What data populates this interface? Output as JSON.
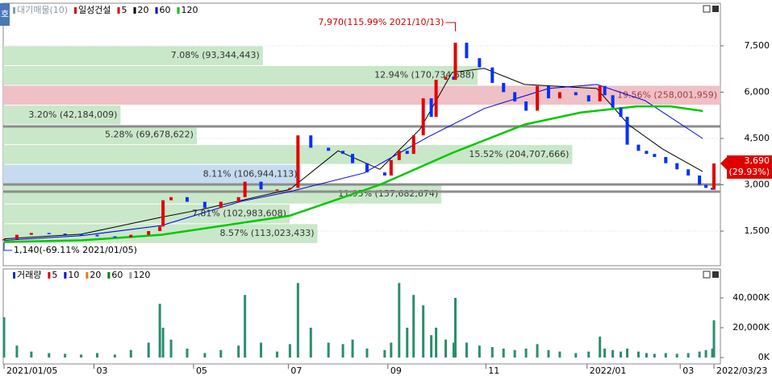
{
  "side_button": "호",
  "chart_data": [
    {
      "type": "candlestick",
      "legend": [
        {
          "label": "대기매물(10)",
          "color": "#7f9fb0"
        },
        {
          "label": "일성건설",
          "color": "#d00000"
        },
        {
          "label": "5",
          "color": "#e00000"
        },
        {
          "label": "20",
          "color": "#000000"
        },
        {
          "label": "60",
          "color": "#0000e0"
        },
        {
          "label": "120",
          "color": "#00c000"
        }
      ],
      "x": [
        "2021/01/05",
        "2021/01/13",
        "2021/01/22",
        "2021/02/02",
        "2021/02/12",
        "2021/02/22",
        "2021/03/04",
        "2021/03/15",
        "2021/03/25",
        "2021/04/05",
        "2021/04/12",
        "2021/04/14",
        "2021/04/19",
        "2021/04/29",
        "2021/05/10",
        "2021/05/20",
        "2021/05/31",
        "2021/06/04",
        "2021/06/14",
        "2021/06/24",
        "2021/07/02",
        "2021/07/07",
        "2021/07/15",
        "2021/07/26",
        "2021/08/04",
        "2021/08/10",
        "2021/08/19",
        "2021/08/30",
        "2021/09/03",
        "2021/09/08",
        "2021/09/13",
        "2021/09/17",
        "2021/09/23",
        "2021/09/28",
        "2021/10/01",
        "2021/10/07",
        "2021/10/12",
        "2021/10/13",
        "2021/10/20",
        "2021/10/28",
        "2021/11/05",
        "2021/11/12",
        "2021/11/19",
        "2021/11/26",
        "2021/12/03",
        "2021/12/10",
        "2021/12/17",
        "2021/12/27",
        "2022/01/04",
        "2022/01/11",
        "2022/01/14",
        "2022/01/19",
        "2022/01/24",
        "2022/01/28",
        "2022/02/04",
        "2022/02/09",
        "2022/02/14",
        "2022/02/21",
        "2022/02/28",
        "2022/03/07",
        "2022/03/14",
        "2022/03/18",
        "2022/03/22",
        "2022/03/23"
      ],
      "close": [
        1240,
        1380,
        1440,
        1420,
        1400,
        1380,
        1330,
        1300,
        1380,
        1500,
        1650,
        2500,
        2600,
        2450,
        2250,
        2450,
        2600,
        3100,
        2850,
        2850,
        2900,
        4600,
        4200,
        4100,
        4000,
        3700,
        3400,
        3300,
        3800,
        4100,
        4000,
        4600,
        5800,
        5200,
        6400,
        6500,
        6400,
        7600,
        7100,
        6800,
        6300,
        6000,
        5700,
        5400,
        6200,
        5800,
        6000,
        5900,
        5700,
        6200,
        5900,
        5500,
        5200,
        4300,
        4100,
        4000,
        3900,
        3700,
        3500,
        3300,
        3000,
        2900,
        2840,
        3690
      ],
      "up_color": "#e00000",
      "down_color": "#0030ff",
      "lines": [
        {
          "color": "#000000",
          "width": 1,
          "x": [
            "2021/01/05",
            "2021/02/22",
            "2021/04/13",
            "2021/05/08",
            "2021/06/02",
            "2021/07/02",
            "2021/08/01",
            "2021/08/27",
            "2021/09/21",
            "2021/10/11",
            "2021/10/31",
            "2021/11/25",
            "2022/01/09",
            "2022/01/29",
            "2022/02/19",
            "2022/03/16"
          ],
          "values": [
            1250,
            1400,
            1950,
            2200,
            2500,
            2850,
            4100,
            3500,
            4800,
            6640,
            6770,
            6250,
            6120,
            4940,
            4160,
            3430
          ]
        },
        {
          "color": "#0000e0",
          "width": 1,
          "x": [
            "2021/01/05",
            "2021/02/22",
            "2021/04/13",
            "2021/06/02",
            "2021/07/02",
            "2021/08/17",
            "2021/09/26",
            "2021/10/31",
            "2021/12/10",
            "2022/01/09",
            "2022/02/08",
            "2022/03/16"
          ],
          "values": [
            1200,
            1350,
            1680,
            2470,
            2780,
            3380,
            4550,
            5470,
            6120,
            6250,
            5730,
            4500
          ]
        },
        {
          "color": "#00c800",
          "width": 2.5,
          "x": [
            "2021/01/05",
            "2021/02/22",
            "2021/04/13",
            "2021/07/02",
            "2021/08/27",
            "2021/10/11",
            "2021/11/25",
            "2021/12/30",
            "2022/02/03",
            "2022/02/24",
            "2022/03/16"
          ],
          "values": [
            1150,
            1200,
            1380,
            2000,
            3000,
            4030,
            4950,
            5340,
            5540,
            5540,
            5390
          ]
        }
      ],
      "profile": [
        {
          "value": 7.08,
          "label": "7.08% (93,344,443)",
          "range": [
            6860,
            7500
          ],
          "color": "#c9e7c9"
        },
        {
          "value": 12.94,
          "label": "12.94% (170,734,688)",
          "range": [
            6220,
            6860
          ],
          "color": "#c9e7c9"
        },
        {
          "value": 19.56,
          "label": "19.56% (258,001,959)",
          "range": [
            5580,
            6220
          ],
          "color": "#efc0c5"
        },
        {
          "value": 3.2,
          "label": "3.20% (42,184,009)",
          "range": [
            4940,
            5580
          ],
          "color": "#c9e7c9"
        },
        {
          "value": 5.28,
          "label": "5.28% (69,678,622)",
          "range": [
            4300,
            4940
          ],
          "color": "#c9e7c9"
        },
        {
          "value": 15.52,
          "label": "15.52% (204,707,666)",
          "range": [
            3660,
            4300
          ],
          "color": "#c9e7c9"
        },
        {
          "value": 8.11,
          "label": "8.11% (106,944,113)",
          "range": [
            3020,
            3660
          ],
          "color": "#c6dbef"
        },
        {
          "value": 11.95,
          "label": "11.95% (157,682,674)",
          "range": [
            2380,
            3020
          ],
          "color": "#c9e7c9"
        },
        {
          "value": 7.81,
          "label": "7.81% (102,983,608)",
          "range": [
            1740,
            2380
          ],
          "color": "#c9e7c9"
        },
        {
          "value": 8.57,
          "label": "8.57% (113,023,433)",
          "range": [
            1100,
            1740
          ],
          "color": "#c9e7c9"
        }
      ],
      "support_lines": [
        4890,
        3010,
        2780
      ],
      "high": {
        "value": 7970,
        "date": "2021/10/13",
        "label": "7,970(115.99% 2021/10/13)"
      },
      "low": {
        "value": 1140,
        "date": "2021/01/05",
        "label": "1,140(-69.11% 2021/01/05)"
      },
      "last": {
        "value": 3690,
        "label": "3,690",
        "change_label": "(29.93%)"
      },
      "xlim": [
        "2021/01/05",
        "2022/03/27"
      ],
      "xticks": [
        "2021/01/05",
        {
          "value": "2021/03/02",
          "label": "03"
        },
        {
          "value": "2021/05/03",
          "label": "05"
        },
        {
          "value": "2021/07/01",
          "label": "07"
        },
        {
          "value": "2021/09/01",
          "label": "09"
        },
        {
          "value": "2021/11/01",
          "label": "11"
        },
        {
          "value": "2022/01/03",
          "label": "2022/01"
        },
        {
          "value": "2022/03/02",
          "label": "03"
        },
        "2022/03/23"
      ],
      "ylim": [
        380,
        8880
      ],
      "yticks": [
        {
          "value": 1500,
          "label": "1,500"
        },
        {
          "value": 3000,
          "label": "3,000"
        },
        {
          "value": 4500,
          "label": "4,500"
        },
        {
          "value": 6000,
          "label": "6,000"
        },
        {
          "value": 7500,
          "label": "7,500"
        }
      ]
    },
    {
      "type": "bar",
      "legend": [
        {
          "label": "거래량",
          "color": "#0030c0"
        },
        {
          "label": "5",
          "color": "#e00000"
        },
        {
          "label": "10",
          "color": "#0000e0"
        },
        {
          "label": "20",
          "color": "#e08000"
        },
        {
          "label": "60",
          "color": "#008000"
        },
        {
          "label": "120",
          "color": "#a0a0a0"
        }
      ],
      "values": [
        27000,
        8000,
        4000,
        3000,
        2500,
        2000,
        3000,
        2000,
        5000,
        10000,
        36000,
        20000,
        12000,
        6000,
        3000,
        5000,
        8000,
        42000,
        10000,
        4000,
        9000,
        50000,
        20000,
        10000,
        9000,
        12000,
        6000,
        5000,
        10000,
        50000,
        20000,
        42000,
        35000,
        15000,
        20000,
        12000,
        10000,
        40000,
        10000,
        8000,
        7000,
        6000,
        5000,
        6000,
        9000,
        5000,
        4000,
        3000,
        4000,
        14000,
        6000,
        5000,
        4000,
        6000,
        4000,
        3000,
        2500,
        3000,
        2500,
        3000,
        4000,
        5000,
        6000,
        25000
      ],
      "color": "#2a8f6a",
      "ylim": [
        -4300,
        50800
      ],
      "yticks": [
        {
          "value": 0,
          "label": "0K"
        },
        {
          "value": 20000,
          "label": "20,000K"
        },
        {
          "value": 40000,
          "label": "40,000K"
        }
      ]
    }
  ]
}
